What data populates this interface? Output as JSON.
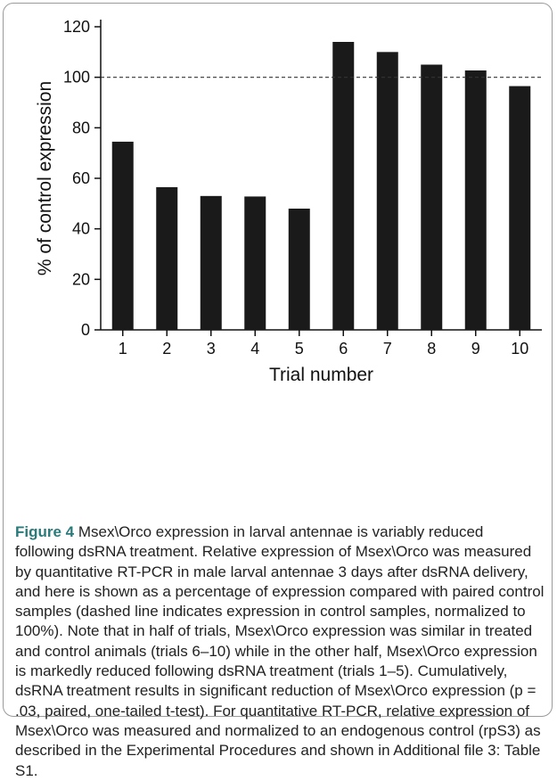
{
  "chart_data": {
    "type": "bar",
    "categories": [
      "1",
      "2",
      "3",
      "4",
      "5",
      "6",
      "7",
      "8",
      "9",
      "10"
    ],
    "values": [
      74.5,
      56.5,
      53,
      52.8,
      48,
      114,
      110,
      105,
      102.7,
      96.5
    ],
    "title": "",
    "xlabel": "Trial number",
    "ylabel": "% of control expression",
    "ylim": [
      0,
      120
    ],
    "yticks": [
      0,
      20,
      40,
      60,
      80,
      100,
      120
    ],
    "reference_line": {
      "value": 100,
      "style": "dashed"
    },
    "bar_color": "#1a1a1a",
    "grid": false
  },
  "caption": {
    "label": "Figure 4",
    "text": " Msex\\Orco expression in larval antennae is variably reduced following dsRNA treatment. Relative expression of Msex\\Orco was measured by quantitative RT-PCR in male larval antennae 3 days after dsRNA delivery, and here is shown as a percentage of expression compared with paired control samples (dashed line indicates expression in control samples, normalized to 100%). Note that in half of trials, Msex\\Orco expression was similar in treated and control animals (trials 6–10) while in the other half, Msex\\Orco expression is markedly reduced following dsRNA treatment (trials 1–5). Cumulatively, dsRNA treatment results in significant reduction of Msex\\Orco expression (p = .03, paired, one-tailed t-test). For quantitative RT-PCR, relative expression of Msex\\Orco was measured and normalized to an endogenous control (rpS3) as described in the Experimental Procedures and shown in Additional file 3: Table S1."
  }
}
